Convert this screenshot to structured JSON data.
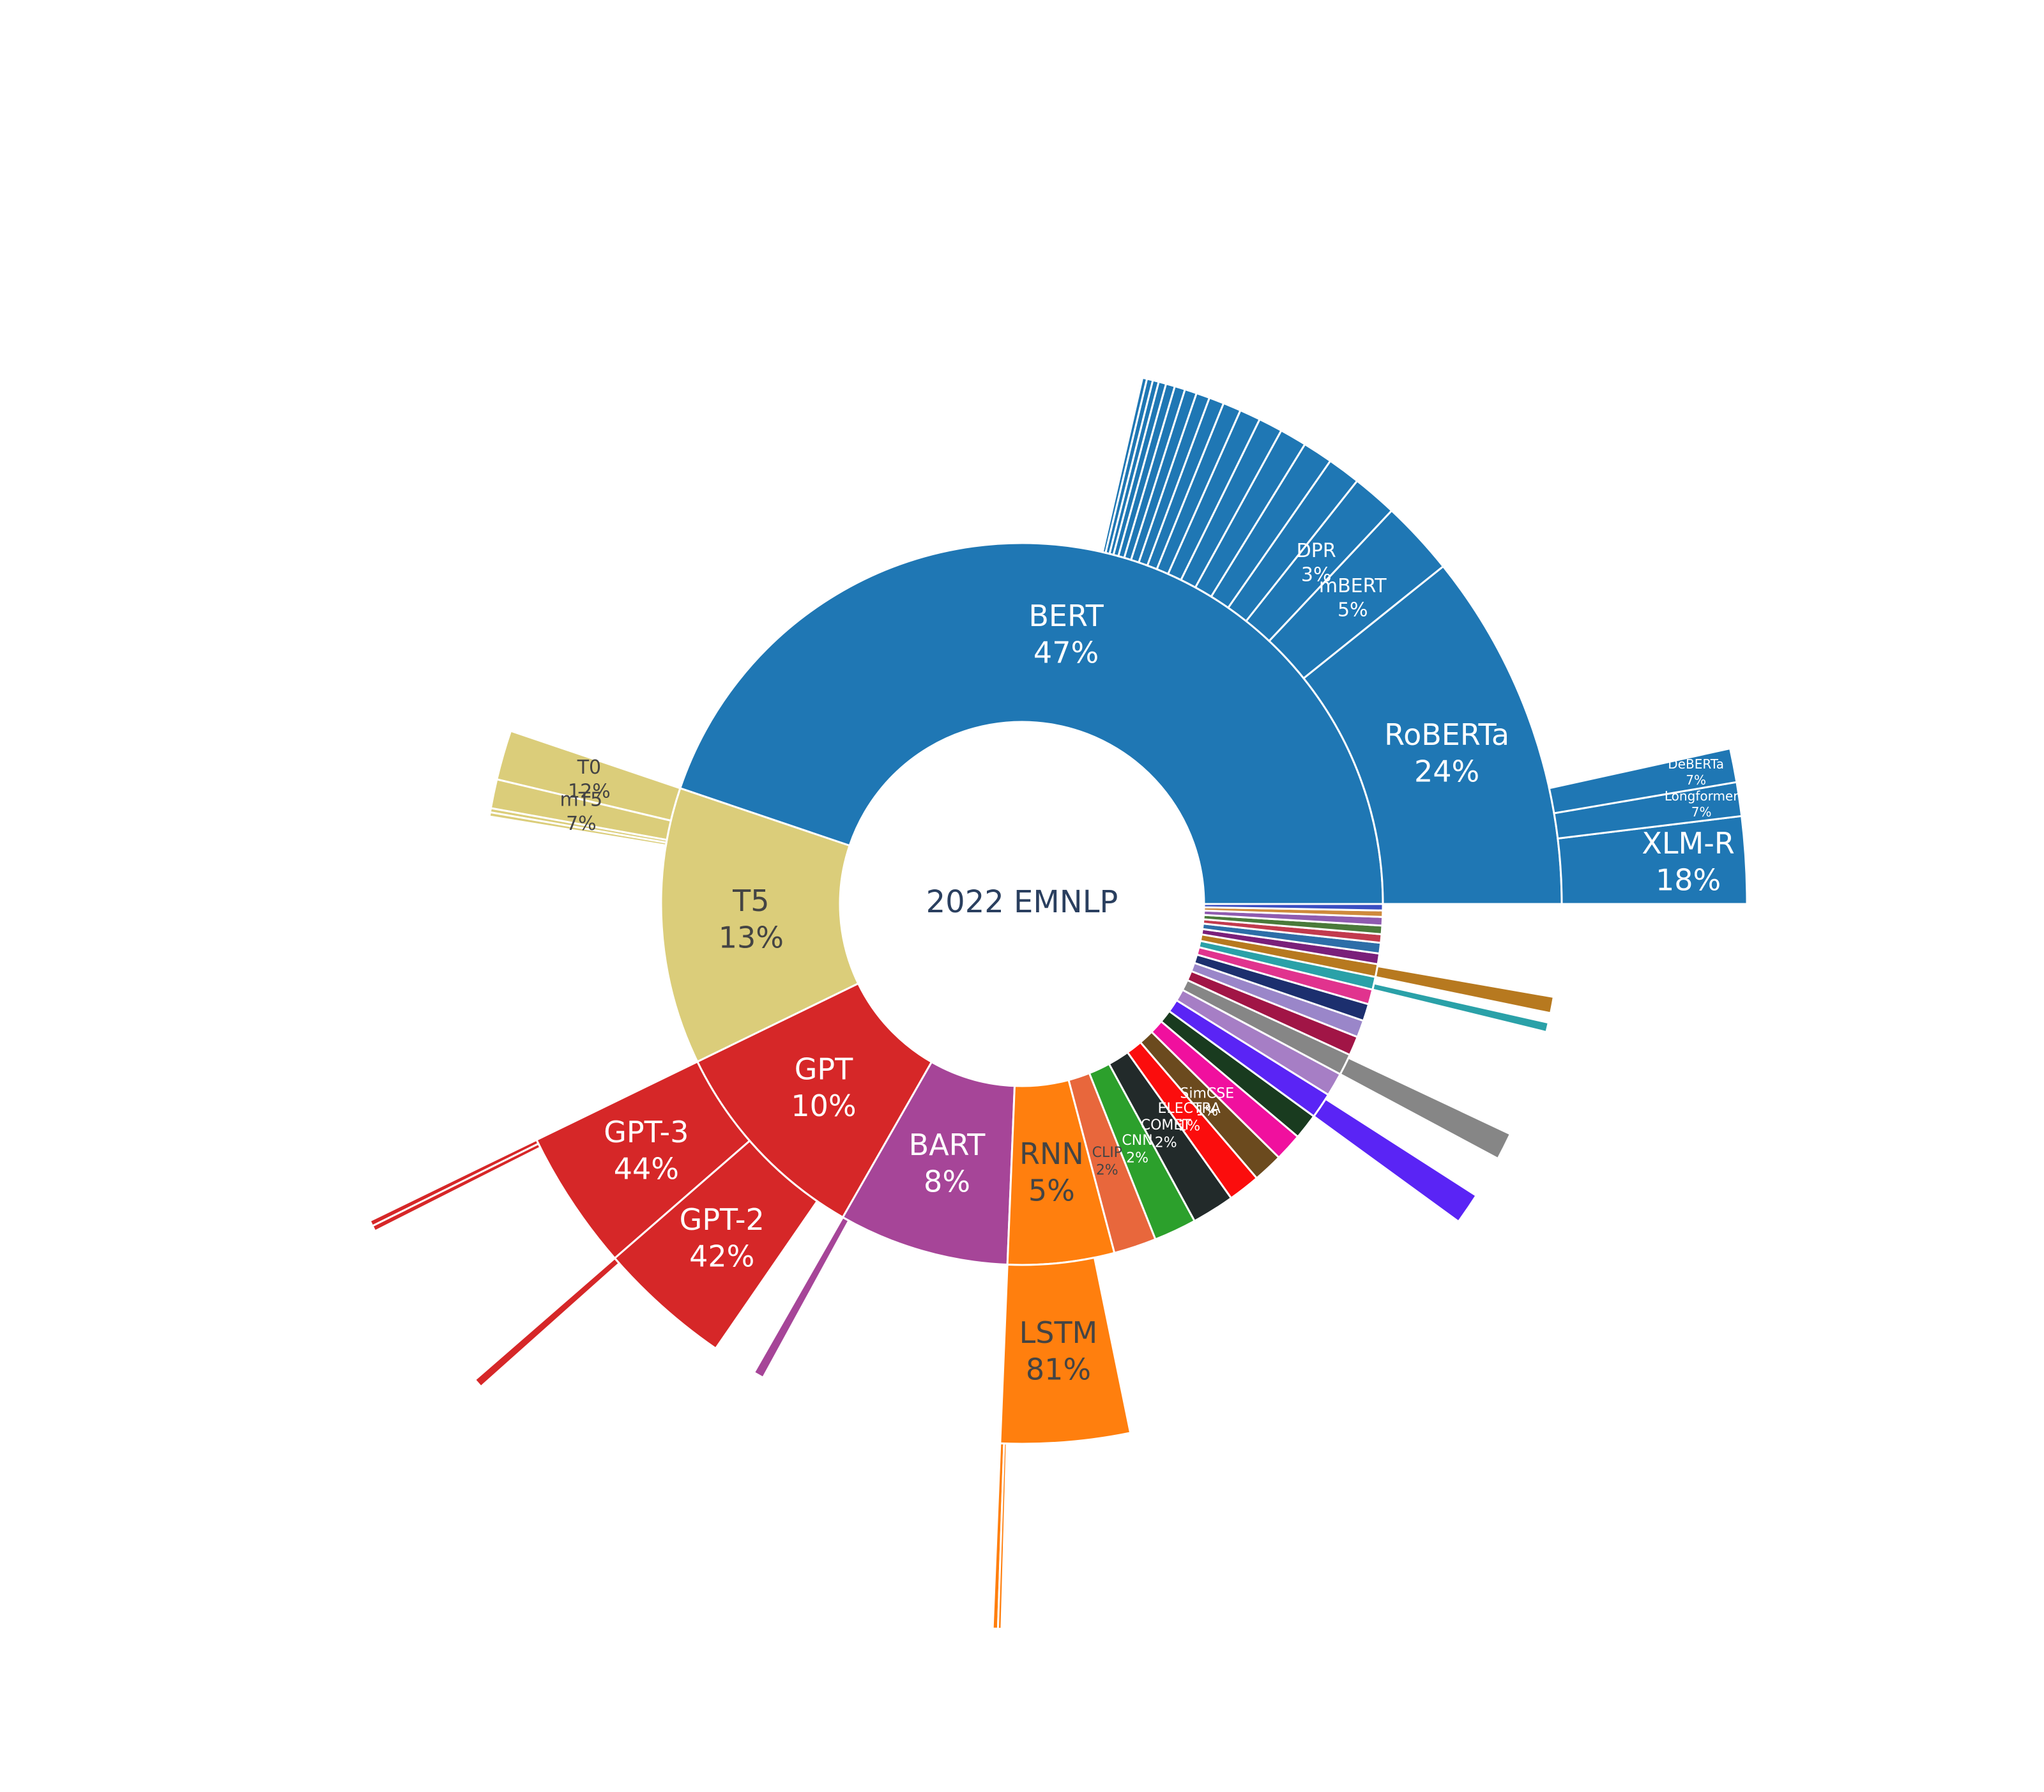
{
  "chart_data": {
    "type": "sunburst",
    "root": {
      "label": "2022 EMNLP"
    },
    "start_angle_deg": 0,
    "direction": "clockwise",
    "ring1": [
      {
        "id": "BERT",
        "label": "BERT",
        "pct": "47%",
        "share": 0.47,
        "color": "#1f77b4"
      },
      {
        "id": "T5",
        "label": "T5",
        "pct": "13%",
        "share": 0.13,
        "color": "#dbcd7a"
      },
      {
        "id": "GPT",
        "label": "GPT",
        "pct": "10%",
        "share": 0.1,
        "color": "#d62728"
      },
      {
        "id": "BART",
        "label": "BART",
        "pct": "8%",
        "share": 0.08,
        "color": "#a64598"
      },
      {
        "id": "RNN",
        "label": "RNN",
        "pct": "5%",
        "share": 0.05,
        "color": "#ff7f0e"
      },
      {
        "id": "CLIP",
        "label": "CLIP",
        "pct": "2%",
        "share": 0.02,
        "color": "#e8673c"
      },
      {
        "id": "CNN",
        "label": "CNN",
        "pct": "2%",
        "share": 0.02,
        "color": "#2ca02c"
      },
      {
        "id": "COMET",
        "label": "COMET",
        "pct": "2%",
        "share": 0.02,
        "color": "#222a2a"
      },
      {
        "id": "ELECTRA",
        "label": "ELECTRA",
        "pct": "1%",
        "share": 0.015,
        "color": "#fb0d0d"
      },
      {
        "id": "SimCSE",
        "label": "SimCSE",
        "pct": "1%",
        "share": 0.014,
        "color": "#6b4a1e"
      },
      {
        "id": "O1",
        "label": "",
        "pct": "",
        "share": 0.013,
        "color": "#f0109e"
      },
      {
        "id": "O2",
        "label": "",
        "pct": "",
        "share": 0.012,
        "color": "#193b1f"
      },
      {
        "id": "O3",
        "label": "",
        "pct": "",
        "share": 0.012,
        "color": "#5a24f5"
      },
      {
        "id": "O4",
        "label": "",
        "pct": "",
        "share": 0.011,
        "color": "#a67ec5"
      },
      {
        "id": "O5",
        "label": "",
        "pct": "",
        "share": 0.01,
        "color": "#868686"
      },
      {
        "id": "O6",
        "label": "",
        "pct": "",
        "share": 0.009,
        "color": "#a11546"
      },
      {
        "id": "O7",
        "label": "",
        "pct": "",
        "share": 0.008,
        "color": "#9a86c9"
      },
      {
        "id": "O8",
        "label": "",
        "pct": "",
        "share": 0.008,
        "color": "#1c2f6e"
      },
      {
        "id": "O9",
        "label": "",
        "pct": "",
        "share": 0.007,
        "color": "#e1338e"
      },
      {
        "id": "O10",
        "label": "",
        "pct": "",
        "share": 0.006,
        "color": "#2aa1a8"
      },
      {
        "id": "O11",
        "label": "",
        "pct": "",
        "share": 0.006,
        "color": "#b7791f"
      },
      {
        "id": "O12",
        "label": "",
        "pct": "",
        "share": 0.005,
        "color": "#7a1f7a"
      },
      {
        "id": "O13",
        "label": "",
        "pct": "",
        "share": 0.005,
        "color": "#2d6ea8"
      },
      {
        "id": "O14",
        "label": "",
        "pct": "",
        "share": 0.004,
        "color": "#c23a4e"
      },
      {
        "id": "O15",
        "label": "",
        "pct": "",
        "share": 0.004,
        "color": "#4a7a3a"
      },
      {
        "id": "O16",
        "label": "",
        "pct": "",
        "share": 0.004,
        "color": "#8f5bb0"
      },
      {
        "id": "O17",
        "label": "",
        "pct": "",
        "share": 0.003,
        "color": "#cf8a3c"
      },
      {
        "id": "O18",
        "label": "",
        "pct": "",
        "share": 0.003,
        "color": "#3a4ec2"
      }
    ],
    "ring2": [
      {
        "parent": "BERT",
        "label": "RoBERTa",
        "pct": "24%",
        "share": 0.24
      },
      {
        "parent": "BERT",
        "label": "mBERT",
        "pct": "5%",
        "share": 0.05
      },
      {
        "parent": "BERT",
        "label": "DPR",
        "pct": "3%",
        "share": 0.03
      },
      {
        "parent": "BERT",
        "label": "",
        "pct": "",
        "share": 0.022
      },
      {
        "parent": "BERT",
        "label": "",
        "pct": "",
        "share": 0.02
      },
      {
        "parent": "BERT",
        "label": "",
        "pct": "",
        "share": 0.018
      },
      {
        "parent": "BERT",
        "label": "",
        "pct": "",
        "share": 0.016
      },
      {
        "parent": "BERT",
        "label": "",
        "pct": "",
        "share": 0.014
      },
      {
        "parent": "BERT",
        "label": "",
        "pct": "",
        "share": 0.012
      },
      {
        "parent": "BERT",
        "label": "",
        "pct": "",
        "share": 0.01
      },
      {
        "parent": "BERT",
        "label": "",
        "pct": "",
        "share": 0.009
      },
      {
        "parent": "BERT",
        "label": "",
        "pct": "",
        "share": 0.008
      },
      {
        "parent": "BERT",
        "label": "",
        "pct": "",
        "share": 0.007
      },
      {
        "parent": "BERT",
        "label": "",
        "pct": "",
        "share": 0.006
      },
      {
        "parent": "BERT",
        "label": "",
        "pct": "",
        "share": 0.005
      },
      {
        "parent": "BERT",
        "label": "",
        "pct": "",
        "share": 0.004
      },
      {
        "parent": "BERT",
        "label": "",
        "pct": "",
        "share": 0.004
      },
      {
        "parent": "BERT",
        "label": "",
        "pct": "",
        "share": 0.003
      },
      {
        "parent": "T5",
        "label": "T0",
        "pct": "12%",
        "share": 0.12
      },
      {
        "parent": "T5",
        "label": "mT5",
        "pct": "7%",
        "share": 0.07
      },
      {
        "parent": "T5",
        "label": "",
        "pct": "",
        "share": 0.01
      },
      {
        "parent": "T5",
        "label": "",
        "pct": "",
        "share": 0.01
      },
      {
        "parent": "GPT",
        "label": "GPT-3",
        "pct": "44%",
        "share": 0.44
      },
      {
        "parent": "GPT",
        "label": "GPT-2",
        "pct": "42%",
        "share": 0.42
      },
      {
        "parent": "BART",
        "label": "",
        "pct": "",
        "share": 0.04
      },
      {
        "parent": "RNN",
        "label": "LSTM",
        "pct": "81%",
        "share": 0.81
      },
      {
        "parent": "O3",
        "label": "",
        "pct": "",
        "share": 0.81
      },
      {
        "parent": "O5",
        "label": "",
        "pct": "",
        "share": 0.85
      },
      {
        "parent": "O11",
        "label": "",
        "pct": "",
        "share": 0.85
      },
      {
        "parent": "O10",
        "label": "",
        "pct": "",
        "share": 0.5
      }
    ],
    "ring3": [
      {
        "parent": "RoBERTa",
        "label": "XLM-R",
        "pct": "18%",
        "share": 0.18
      },
      {
        "parent": "RoBERTa",
        "label": "Longformer",
        "pct": "7%",
        "share": 0.07
      },
      {
        "parent": "RoBERTa",
        "label": "DeBERTa",
        "pct": "7%",
        "share": 0.07
      },
      {
        "parent": "T0",
        "label": "",
        "pct": "",
        "share": 0.0
      },
      {
        "parent": "GPT-3",
        "label": "",
        "pct": "",
        "share": 0.03
      },
      {
        "parent": "GPT-3",
        "label": "",
        "pct": "",
        "share": 0.03
      },
      {
        "parent": "GPT-2",
        "label": "",
        "pct": "",
        "share": 0.05
      },
      {
        "parent": "LSTM",
        "label": "",
        "pct": "",
        "share": 0.03
      },
      {
        "parent": "LSTM",
        "label": "",
        "pct": "",
        "share": 0.02
      }
    ]
  }
}
